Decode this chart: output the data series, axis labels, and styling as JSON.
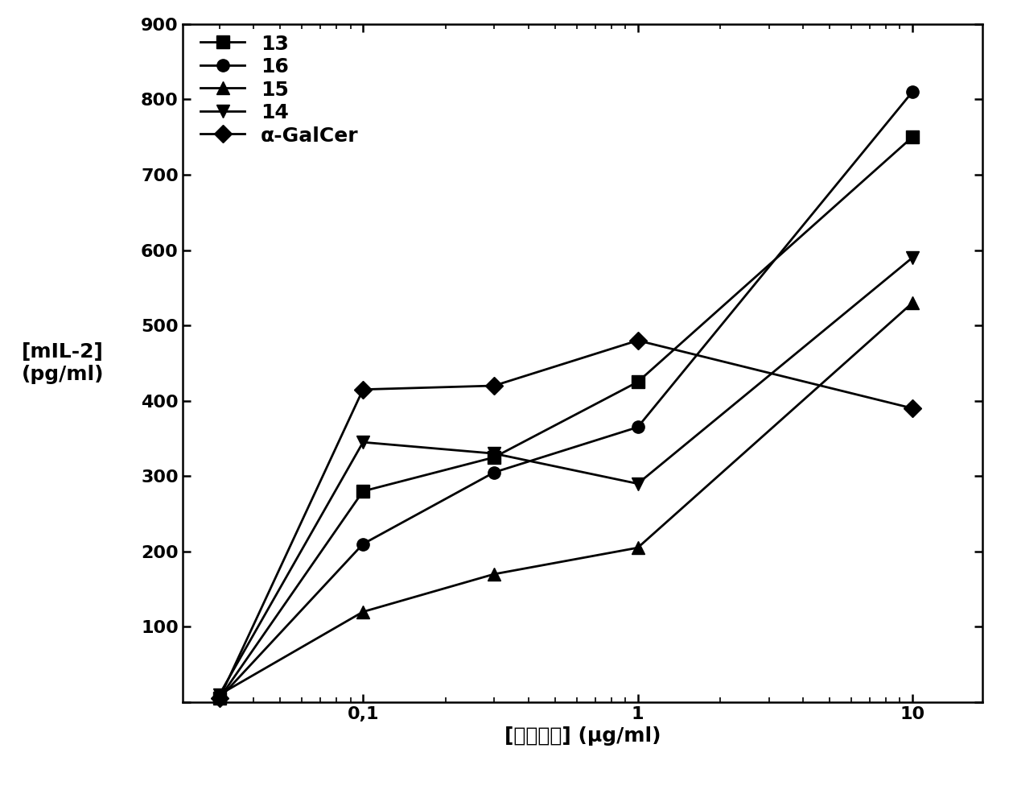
{
  "x_values": [
    0.03,
    0.1,
    0.3,
    1.0,
    10.0
  ],
  "series": {
    "13": {
      "y": [
        5,
        280,
        325,
        425,
        750
      ],
      "marker": "s",
      "label": "13"
    },
    "16": {
      "y": [
        5,
        210,
        305,
        365,
        810
      ],
      "marker": "o",
      "label": "16"
    },
    "15": {
      "y": [
        10,
        120,
        170,
        205,
        530
      ],
      "marker": "^",
      "label": "15"
    },
    "14": {
      "y": [
        10,
        345,
        330,
        290,
        590
      ],
      "marker": "v",
      "label": "14"
    },
    "alpha_GalCer": {
      "y": [
        5,
        415,
        420,
        480,
        390
      ],
      "marker": "D",
      "label": "α-GalCer"
    }
  },
  "color": "black",
  "linewidth": 2.0,
  "markersize": 11,
  "ylabel_line1": "[mIL-2]",
  "ylabel_line2": "(pg/ml)",
  "xlabel": "[脂质抗原] (μg/ml)",
  "ylim": [
    0,
    900
  ],
  "yticks": [
    0,
    100,
    200,
    300,
    400,
    500,
    600,
    700,
    800,
    900
  ],
  "xlim": [
    0.022,
    18
  ],
  "xtick_labels": [
    "0,1",
    "1",
    "10"
  ],
  "xtick_positions": [
    0.1,
    1.0,
    10.0
  ],
  "background_color": "white",
  "axis_fontsize": 18,
  "legend_fontsize": 18,
  "tick_fontsize": 16
}
